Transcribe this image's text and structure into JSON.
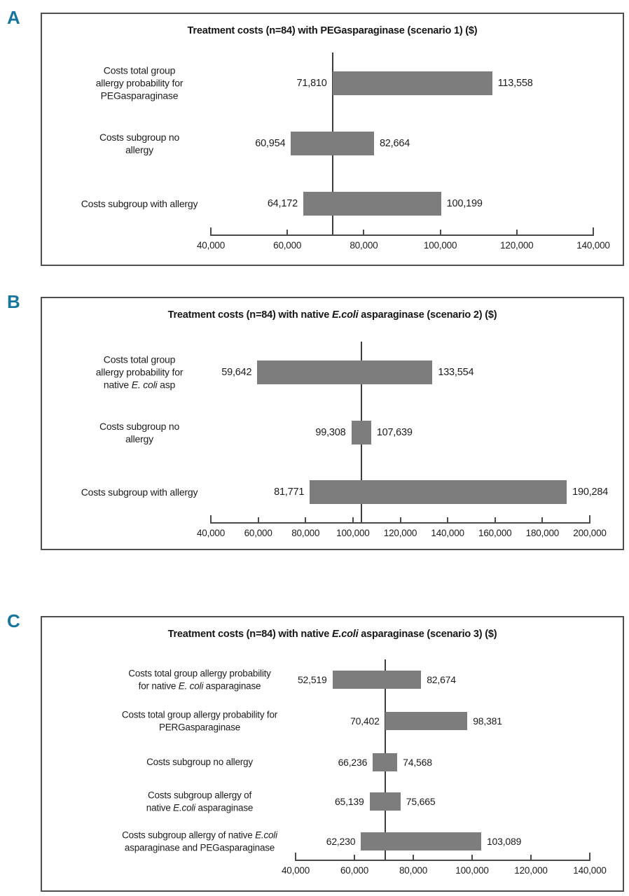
{
  "figure_name": "Treatment cost tornado charts, three scenarios",
  "colors": {
    "bar": "#7d7d7d",
    "panel_border": "#4f4f4f",
    "axis": "#4a4a4a",
    "baseline_line": "#3d3d3d",
    "panel_letter": "#17769e",
    "text": "#1c1c1c",
    "background": "#ffffff"
  },
  "chart_data": [
    {
      "type": "bar",
      "subtype": "tornado-range",
      "panel_label": "A",
      "title": "Treatment costs (n=84) with PEGasparaginase (scenario 1) ($)",
      "title_segments": [
        {
          "t": "Treatment costs (n=84) with PEGasparaginase (scenario 1) ($)"
        }
      ],
      "xlim": [
        40000,
        140000
      ],
      "ticks": [
        {
          "v": 40000,
          "label": "40,000"
        },
        {
          "v": 60000,
          "label": "60,000"
        },
        {
          "v": 80000,
          "label": "80,000"
        },
        {
          "v": 100000,
          "label": "100,000"
        },
        {
          "v": 120000,
          "label": "120,000"
        },
        {
          "v": 140000,
          "label": "140,000"
        }
      ],
      "baseline": 71810,
      "rows": [
        {
          "label": "Costs total group allergy probability for PEGasparaginase",
          "label_segments": [
            {
              "t": "Costs total group"
            },
            {
              "br": true
            },
            {
              "t": "allergy probability for"
            },
            {
              "br": true
            },
            {
              "t": "PEGasparaginase"
            }
          ],
          "low": 71810,
          "high": 113558,
          "low_label": "71,810",
          "high_label": "113,558"
        },
        {
          "label": "Costs subgroup no allergy",
          "label_segments": [
            {
              "t": "Costs subgroup no"
            },
            {
              "br": true
            },
            {
              "t": "allergy"
            }
          ],
          "low": 60954,
          "high": 82664,
          "low_label": "60,954",
          "high_label": "82,664"
        },
        {
          "label": "Costs subgroup with allergy",
          "label_segments": [
            {
              "t": "Costs subgroup with allergy"
            }
          ],
          "low": 64172,
          "high": 100199,
          "low_label": "64,172",
          "high_label": "100,199"
        }
      ]
    },
    {
      "type": "bar",
      "subtype": "tornado-range",
      "panel_label": "B",
      "title": "Treatment costs (n=84) with native E.coli asparaginase (scenario 2) ($)",
      "title_segments": [
        {
          "t": "Treatment costs (n=84) with native "
        },
        {
          "t": "E.coli",
          "i": true
        },
        {
          "t": " asparaginase (scenario 2) ($)"
        }
      ],
      "xlim": [
        40000,
        200000
      ],
      "ticks": [
        {
          "v": 40000,
          "label": "40,000"
        },
        {
          "v": 60000,
          "label": "60,000"
        },
        {
          "v": 80000,
          "label": "80,000"
        },
        {
          "v": 100000,
          "label": "100,000"
        },
        {
          "v": 120000,
          "label": "120,000"
        },
        {
          "v": 140000,
          "label": "140,000"
        },
        {
          "v": 160000,
          "label": "160,000"
        },
        {
          "v": 180000,
          "label": "180,000"
        },
        {
          "v": 200000,
          "label": "200,000"
        }
      ],
      "baseline": 103473,
      "rows": [
        {
          "label": "Costs total group allergy probability for native E. coli asp",
          "label_segments": [
            {
              "t": "Costs total group"
            },
            {
              "br": true
            },
            {
              "t": "allergy probability for"
            },
            {
              "br": true
            },
            {
              "t": "native "
            },
            {
              "t": "E. coli",
              "i": true
            },
            {
              "t": " asp"
            }
          ],
          "low": 59642,
          "high": 133554,
          "low_label": "59,642",
          "high_label": "133,554"
        },
        {
          "label": "Costs subgroup no allergy",
          "label_segments": [
            {
              "t": "Costs subgroup no"
            },
            {
              "br": true
            },
            {
              "t": "allergy"
            }
          ],
          "low": 99308,
          "high": 107639,
          "low_label": "99,308",
          "high_label": "107,639"
        },
        {
          "label": "Costs subgroup with allergy",
          "label_segments": [
            {
              "t": "Costs subgroup with allergy"
            }
          ],
          "low": 81771,
          "high": 190284,
          "low_label": "81,771",
          "high_label": "190,284"
        }
      ]
    },
    {
      "type": "bar",
      "subtype": "tornado-range",
      "panel_label": "C",
      "title": "Treatment costs (n=84) with native E.coli asparaginase (scenario 3) ($)",
      "title_segments": [
        {
          "t": "Treatment costs (n=84) with native "
        },
        {
          "t": "E.coli",
          "i": true
        },
        {
          "t": " asparaginase (scenario 3) ($)"
        }
      ],
      "xlim": [
        40000,
        140000
      ],
      "ticks": [
        {
          "v": 40000,
          "label": "40,000"
        },
        {
          "v": 60000,
          "label": "60,000"
        },
        {
          "v": 80000,
          "label": "80,000"
        },
        {
          "v": 100000,
          "label": "100,000"
        },
        {
          "v": 120000,
          "label": "120,000"
        },
        {
          "v": 140000,
          "label": "140,000"
        }
      ],
      "baseline": 70402,
      "rows": [
        {
          "label": "Costs total group allergy probability for native E. coli asparaginase",
          "label_segments": [
            {
              "t": "Costs total group allergy probability"
            },
            {
              "br": true
            },
            {
              "t": "for native "
            },
            {
              "t": "E. coli",
              "i": true
            },
            {
              "t": " asparaginase"
            }
          ],
          "low": 52519,
          "high": 82674,
          "low_label": "52,519",
          "high_label": "82,674"
        },
        {
          "label": "Costs total group allergy probability for PERGasparaginase",
          "label_segments": [
            {
              "t": "Costs total group allergy probability for"
            },
            {
              "br": true
            },
            {
              "t": "PERGasparaginase"
            }
          ],
          "low": 70402,
          "high": 98381,
          "low_label": "70,402",
          "high_label": "98,381"
        },
        {
          "label": "Costs subgroup no allergy",
          "label_segments": [
            {
              "t": "Costs subgroup no allergy"
            }
          ],
          "low": 66236,
          "high": 74568,
          "low_label": "66,236",
          "high_label": "74,568"
        },
        {
          "label": "Costs subgroup allergy of native E.coli asparaginase",
          "label_segments": [
            {
              "t": "Costs subgroup allergy of"
            },
            {
              "br": true
            },
            {
              "t": "native "
            },
            {
              "t": "E.coli",
              "i": true
            },
            {
              "t": " asparaginase"
            }
          ],
          "low": 65139,
          "high": 75665,
          "low_label": "65,139",
          "high_label": "75,665"
        },
        {
          "label": "Costs subgroup allergy of native E.coli asparaginase and PEGasparaginase",
          "label_segments": [
            {
              "t": "Costs subgroup allergy of native "
            },
            {
              "t": "E.coli",
              "i": true
            },
            {
              "br": true
            },
            {
              "t": "asparaginase and PEGasparaginase"
            }
          ],
          "low": 62230,
          "high": 103089,
          "low_label": "62,230",
          "high_label": "103,089"
        }
      ]
    }
  ]
}
